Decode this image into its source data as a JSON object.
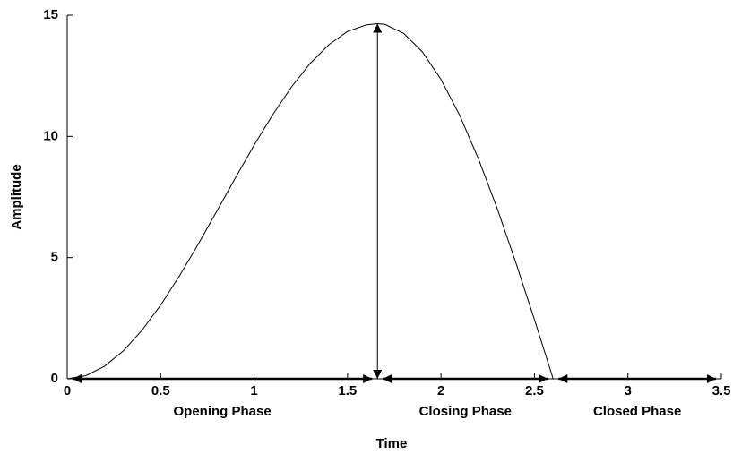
{
  "chart_data": {
    "type": "line",
    "xlabel": "Time",
    "ylabel": "Amplitude",
    "x": [
      0,
      0.1,
      0.2,
      0.3,
      0.4,
      0.5,
      0.6,
      0.7,
      0.8,
      0.9,
      1.0,
      1.1,
      1.2,
      1.3,
      1.4,
      1.5,
      1.6,
      1.66,
      1.7,
      1.8,
      1.9,
      2.0,
      2.1,
      2.2,
      2.3,
      2.4,
      2.5,
      2.6
    ],
    "series": [
      {
        "name": "Amplitude",
        "color": "#000000",
        "values": [
          0,
          0.13,
          0.52,
          1.15,
          2.0,
          3.04,
          4.24,
          5.54,
          6.91,
          8.29,
          9.64,
          10.9,
          12.04,
          13.01,
          13.78,
          14.33,
          14.6,
          14.65,
          14.62,
          14.25,
          13.49,
          12.35,
          10.87,
          9.08,
          7.04,
          4.8,
          2.44,
          0
        ]
      }
    ],
    "phases": [
      {
        "label": "Opening Phase",
        "start": 0,
        "end": 1.66
      },
      {
        "label": "Closing Phase",
        "start": 1.66,
        "end": 2.6
      },
      {
        "label": "Closed Phase",
        "start": 2.6,
        "end": 3.5
      }
    ],
    "peak_index": 17,
    "xlim": [
      0,
      3.5
    ],
    "xticks": [
      0,
      0.5,
      1,
      1.5,
      2,
      2.5,
      3,
      3.5
    ],
    "ylim": [
      0,
      15
    ],
    "yticks": [
      0,
      5,
      10,
      15
    ],
    "grid": false
  }
}
